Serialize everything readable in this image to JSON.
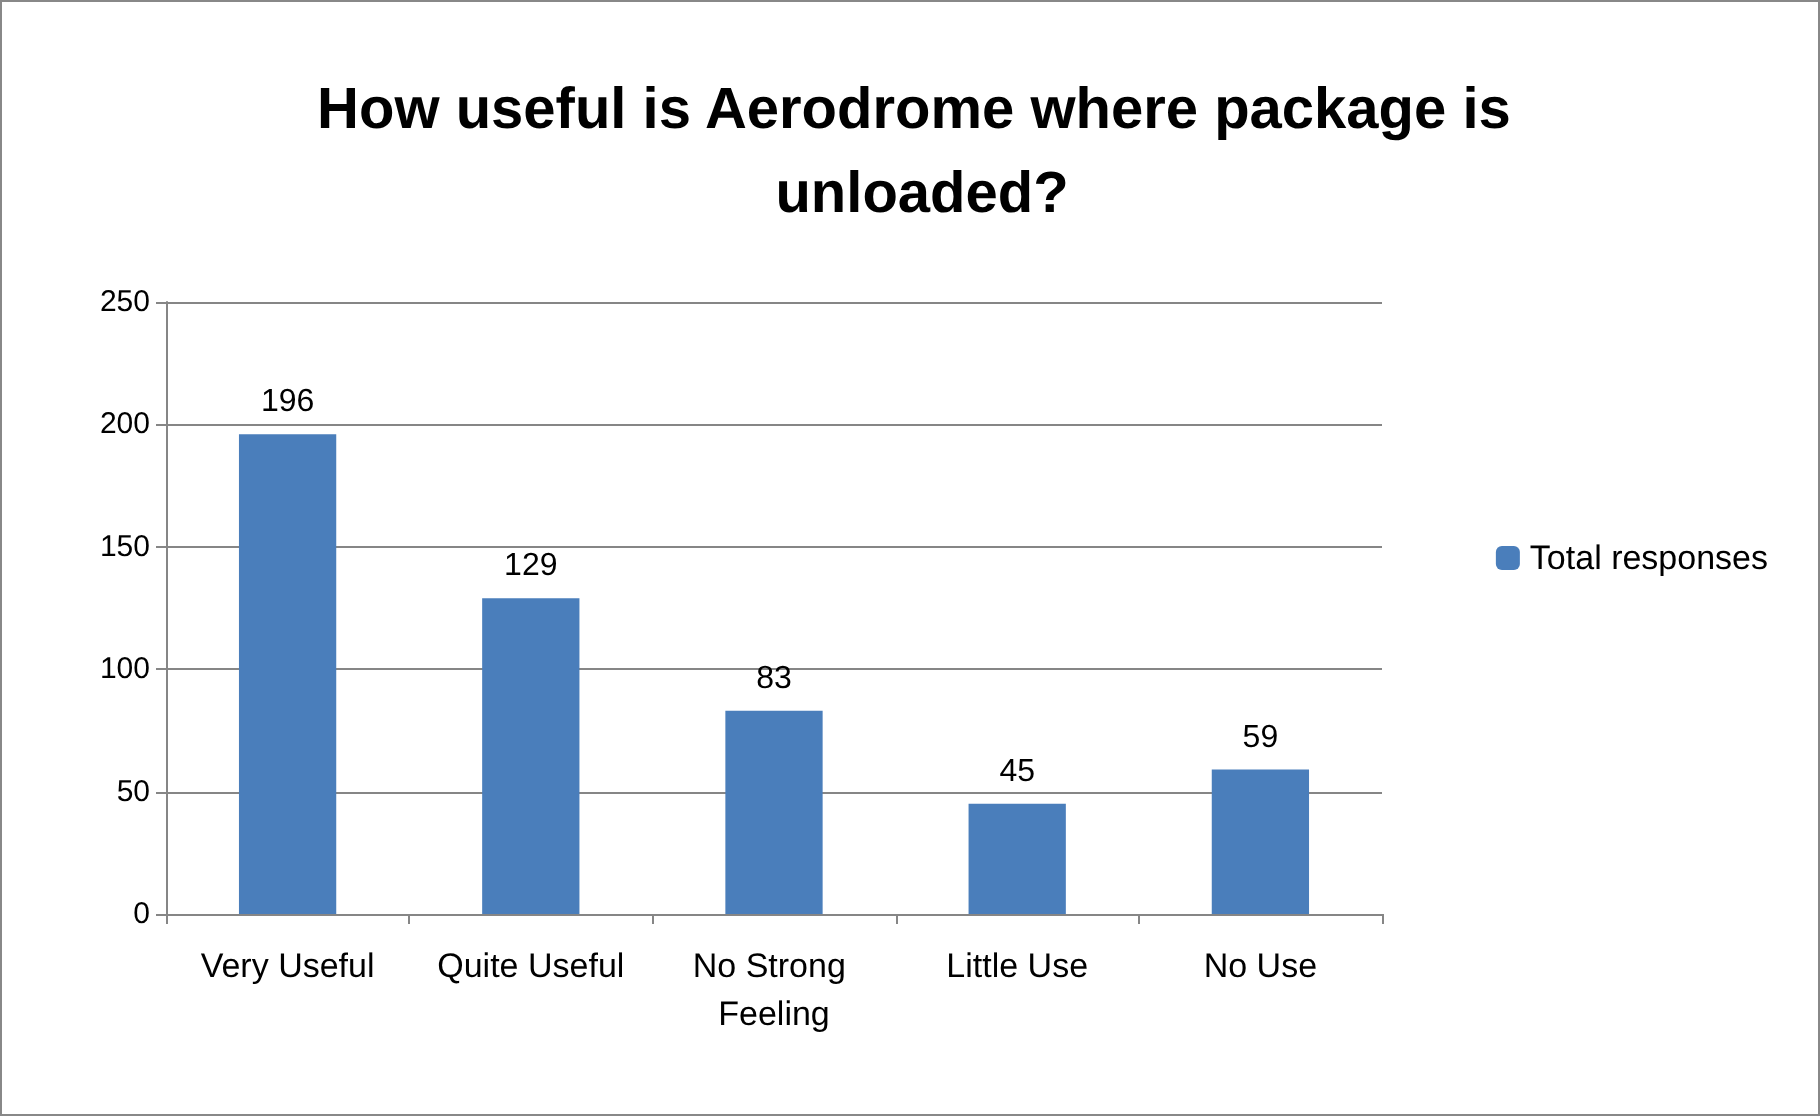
{
  "chart_data": {
    "type": "bar",
    "title": "How useful is Aerodrome where package is unloaded?",
    "categories": [
      "Very Useful",
      "Quite Useful",
      "No Strong Feeling",
      "Little Use",
      "No Use"
    ],
    "series": [
      {
        "name": "Total responses",
        "color": "#4a7ebb",
        "values": [
          196,
          129,
          83,
          45,
          59
        ]
      }
    ],
    "ylim": [
      0,
      250
    ],
    "yticks": [
      0,
      50,
      100,
      150,
      200,
      250
    ],
    "grid": "y",
    "legend": "right",
    "data_labels": true
  }
}
